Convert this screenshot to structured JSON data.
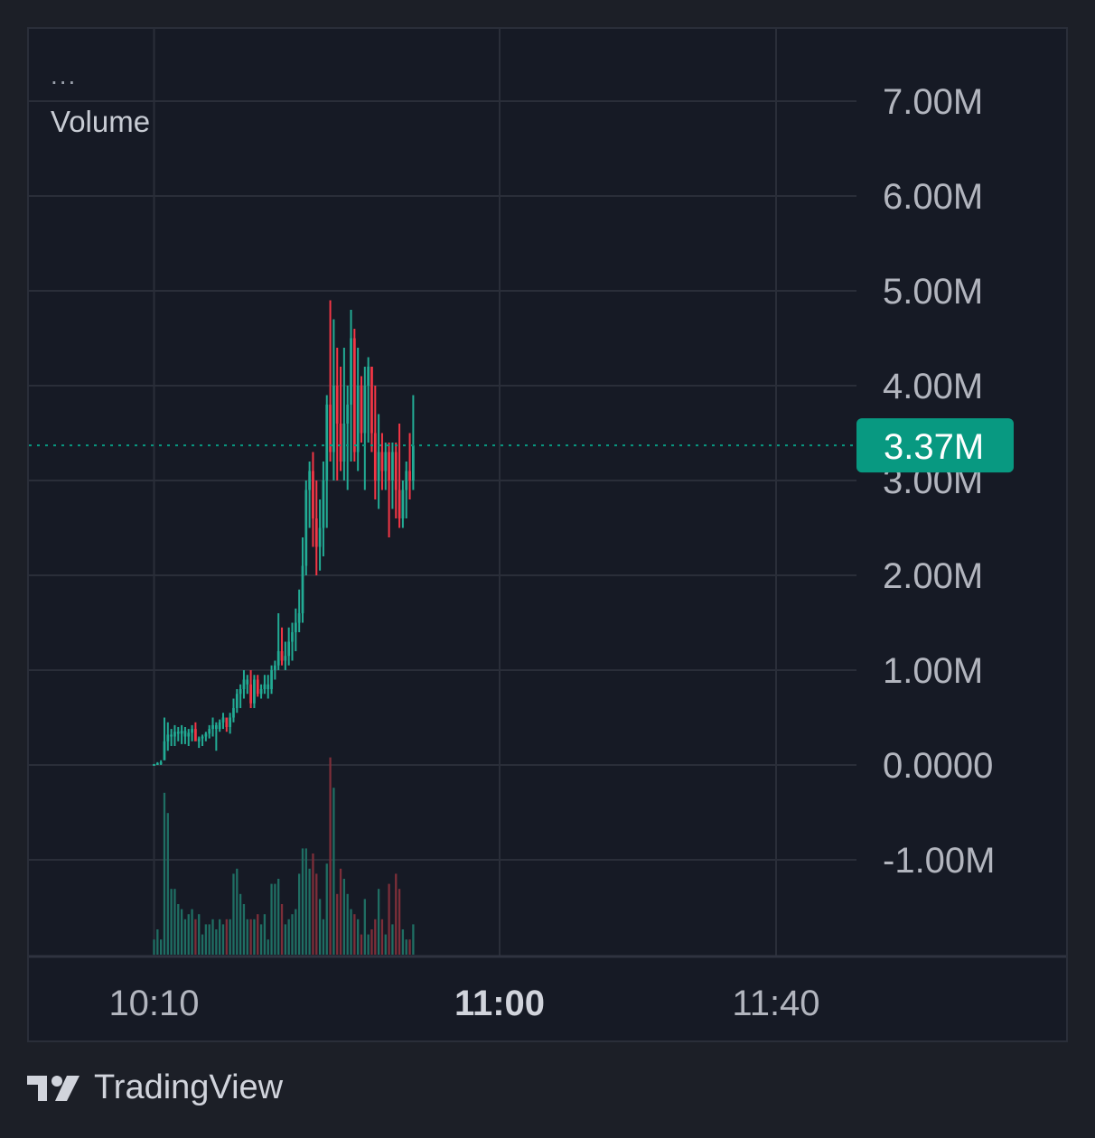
{
  "legend": {
    "dots": "...",
    "series_name": "Volume"
  },
  "price_badge": {
    "label": "3.37M",
    "color": "#089981"
  },
  "brand": {
    "name": "TradingView",
    "icon": "tradingview-logo-icon"
  },
  "colors": {
    "up": "#22ab94",
    "down": "#f23645",
    "up_volume": "#1f6e63",
    "down_volume": "#7d2e39",
    "grid": "#2a2e39",
    "text": "#b2b5be"
  },
  "chart_data": {
    "type": "candlestick",
    "y_axis": {
      "ticks": [
        {
          "value": 7000000,
          "label": "7.00M"
        },
        {
          "value": 6000000,
          "label": "6.00M"
        },
        {
          "value": 5000000,
          "label": "5.00M"
        },
        {
          "value": 4000000,
          "label": "4.00M"
        },
        {
          "value": 3000000,
          "label": "3.00M"
        },
        {
          "value": 2000000,
          "label": "2.00M"
        },
        {
          "value": 1000000,
          "label": "1.00M"
        },
        {
          "value": 0,
          "label": "0.0000"
        },
        {
          "value": -1000000,
          "label": "-1.00M"
        }
      ],
      "ylim": [
        -2000000,
        7800000
      ]
    },
    "x_axis": {
      "ticks": [
        {
          "minute": 0,
          "label": "10:10",
          "bold": false
        },
        {
          "minute": 50,
          "label": "11:00",
          "bold": true
        },
        {
          "minute": 90,
          "label": "11:40",
          "bold": false
        }
      ],
      "xlim": [
        -18,
        102
      ]
    },
    "last_value": 3370000,
    "candles_start_minute": -1,
    "minutes_per_candle": 0.5,
    "candles": [
      [
        0,
        0.01,
        0,
        0.01,
        0.3,
        true
      ],
      [
        0.01,
        0.03,
        0,
        0.02,
        0.5,
        true
      ],
      [
        0.03,
        0.05,
        0,
        0.03,
        0.3,
        true
      ],
      [
        0.05,
        0.5,
        0.05,
        0.25,
        3.2,
        true
      ],
      [
        0.25,
        0.45,
        0.15,
        0.32,
        2.8,
        true
      ],
      [
        0.32,
        0.38,
        0.2,
        0.3,
        1.3,
        true
      ],
      [
        0.3,
        0.42,
        0.2,
        0.35,
        1.3,
        true
      ],
      [
        0.35,
        0.4,
        0.25,
        0.33,
        1.0,
        true
      ],
      [
        0.33,
        0.42,
        0.22,
        0.36,
        0.9,
        true
      ],
      [
        0.36,
        0.4,
        0.22,
        0.3,
        0.7,
        true
      ],
      [
        0.3,
        0.38,
        0.2,
        0.34,
        0.8,
        true
      ],
      [
        0.34,
        0.42,
        0.25,
        0.38,
        0.9,
        true
      ],
      [
        0.38,
        0.45,
        0.28,
        0.25,
        0.7,
        false
      ],
      [
        0.25,
        0.3,
        0.18,
        0.28,
        0.8,
        true
      ],
      [
        0.28,
        0.32,
        0.2,
        0.3,
        0.4,
        true
      ],
      [
        0.3,
        0.35,
        0.25,
        0.33,
        0.6,
        true
      ],
      [
        0.33,
        0.42,
        0.28,
        0.38,
        0.6,
        true
      ],
      [
        0.38,
        0.5,
        0.3,
        0.42,
        0.7,
        true
      ],
      [
        0.42,
        0.45,
        0.15,
        0.38,
        0.5,
        true
      ],
      [
        0.38,
        0.48,
        0.35,
        0.45,
        0.7,
        true
      ],
      [
        0.45,
        0.55,
        0.38,
        0.5,
        0.6,
        true
      ],
      [
        0.5,
        0.5,
        0.35,
        0.4,
        0.7,
        false
      ],
      [
        0.4,
        0.55,
        0.33,
        0.5,
        0.7,
        true
      ],
      [
        0.5,
        0.7,
        0.45,
        0.6,
        1.6,
        true
      ],
      [
        0.6,
        0.8,
        0.55,
        0.75,
        1.7,
        true
      ],
      [
        0.75,
        0.85,
        0.6,
        0.8,
        1.2,
        true
      ],
      [
        0.8,
        1.0,
        0.7,
        0.9,
        1.0,
        true
      ],
      [
        0.9,
        0.95,
        0.75,
        0.85,
        0.7,
        true
      ],
      [
        0.85,
        1.0,
        0.6,
        0.65,
        0.7,
        false
      ],
      [
        0.65,
        0.95,
        0.6,
        0.9,
        0.7,
        true
      ],
      [
        0.9,
        0.95,
        0.72,
        0.75,
        0.8,
        false
      ],
      [
        0.75,
        0.85,
        0.7,
        0.8,
        0.6,
        true
      ],
      [
        0.8,
        0.95,
        0.75,
        0.85,
        0.8,
        true
      ],
      [
        0.85,
        0.95,
        0.7,
        0.8,
        0.3,
        true
      ],
      [
        0.8,
        1.05,
        0.75,
        1.0,
        1.4,
        true
      ],
      [
        1.0,
        1.1,
        0.9,
        1.05,
        1.4,
        true
      ],
      [
        1.05,
        1.6,
        1.0,
        1.2,
        1.5,
        true
      ],
      [
        1.2,
        1.45,
        1.05,
        1.1,
        1.0,
        false
      ],
      [
        1.1,
        1.3,
        1.0,
        1.15,
        0.6,
        true
      ],
      [
        1.15,
        1.45,
        1.05,
        1.3,
        0.7,
        true
      ],
      [
        1.3,
        1.5,
        1.1,
        1.4,
        0.8,
        true
      ],
      [
        1.4,
        1.65,
        1.2,
        1.5,
        0.9,
        true
      ],
      [
        1.5,
        1.85,
        1.4,
        1.6,
        1.6,
        true
      ],
      [
        1.6,
        2.4,
        1.5,
        2.1,
        2.1,
        true
      ],
      [
        2.1,
        3.0,
        2.0,
        2.9,
        2.1,
        true
      ],
      [
        2.9,
        3.2,
        2.5,
        3.1,
        1.7,
        true
      ],
      [
        3.1,
        3.3,
        2.3,
        2.6,
        2.0,
        false
      ],
      [
        2.6,
        3.0,
        2.0,
        2.3,
        1.6,
        false
      ],
      [
        2.3,
        2.8,
        2.05,
        2.5,
        1.1,
        true
      ],
      [
        2.5,
        3.2,
        2.2,
        3.0,
        0.7,
        true
      ],
      [
        3.0,
        3.9,
        2.5,
        3.8,
        1.8,
        true
      ],
      [
        3.8,
        4.9,
        3.2,
        3.3,
        3.9,
        false
      ],
      [
        3.3,
        4.7,
        3.0,
        4.0,
        3.3,
        true
      ],
      [
        4.0,
        4.4,
        3.0,
        3.6,
        1.2,
        false
      ],
      [
        3.6,
        4.2,
        3.1,
        3.2,
        1.7,
        false
      ],
      [
        3.2,
        4.4,
        3.0,
        3.6,
        1.5,
        true
      ],
      [
        3.6,
        4.0,
        2.9,
        3.8,
        1.2,
        true
      ],
      [
        3.8,
        4.8,
        3.2,
        4.5,
        0.9,
        true
      ],
      [
        4.5,
        4.6,
        3.2,
        3.3,
        0.8,
        false
      ],
      [
        3.3,
        4.4,
        3.1,
        4.0,
        0.7,
        true
      ],
      [
        4.0,
        4.1,
        3.4,
        3.5,
        0.4,
        false
      ],
      [
        3.5,
        4.2,
        2.9,
        4.0,
        1.1,
        true
      ],
      [
        4.0,
        4.3,
        3.4,
        4.2,
        0.4,
        true
      ],
      [
        4.2,
        4.2,
        3.3,
        3.5,
        0.5,
        false
      ],
      [
        3.5,
        4.0,
        2.8,
        3.0,
        0.7,
        false
      ],
      [
        3.0,
        3.7,
        2.7,
        3.3,
        1.3,
        true
      ],
      [
        3.3,
        3.5,
        2.9,
        3.1,
        0.7,
        false
      ],
      [
        3.1,
        3.4,
        2.9,
        3.3,
        0.4,
        true
      ],
      [
        3.3,
        3.4,
        2.4,
        3.0,
        1.4,
        false
      ],
      [
        3.0,
        3.4,
        2.7,
        3.3,
        0.6,
        true
      ],
      [
        3.3,
        3.4,
        2.6,
        2.9,
        1.6,
        false
      ],
      [
        2.9,
        3.6,
        2.5,
        2.6,
        1.3,
        false
      ],
      [
        2.6,
        3.0,
        2.5,
        2.9,
        0.5,
        true
      ],
      [
        2.9,
        3.2,
        2.6,
        3.1,
        0.3,
        true
      ],
      [
        3.1,
        3.5,
        2.8,
        3.0,
        0.3,
        false
      ],
      [
        3.0,
        3.9,
        2.9,
        3.37,
        0.6,
        true
      ]
    ]
  }
}
